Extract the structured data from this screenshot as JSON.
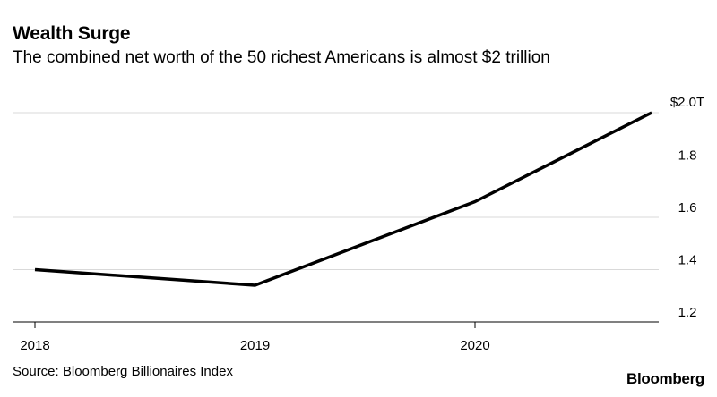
{
  "chart_data": {
    "type": "line",
    "title": "Wealth Surge",
    "subtitle": "The combined net worth of the 50 richest Americans is almost $2 trillion",
    "source": "Source: Bloomberg Billionaires Index",
    "brand": "Bloomberg",
    "x_ticks": [
      "2018",
      "2019",
      "2020"
    ],
    "y_ticks": [
      {
        "value": 2.0,
        "label": "$2.0T"
      },
      {
        "value": 1.8,
        "label": "1.8"
      },
      {
        "value": 1.6,
        "label": "1.6"
      },
      {
        "value": 1.4,
        "label": "1.4"
      },
      {
        "value": 1.2,
        "label": "1.2"
      }
    ],
    "ylim": [
      1.15,
      2.0
    ],
    "grid": true,
    "series": [
      {
        "x": [
          "2018-01-01",
          "2019-01-01",
          "2020-01-01",
          "2020-10-20"
        ],
        "values": [
          1.4,
          1.34,
          1.66,
          2.0
        ],
        "color": "#000000"
      }
    ]
  }
}
